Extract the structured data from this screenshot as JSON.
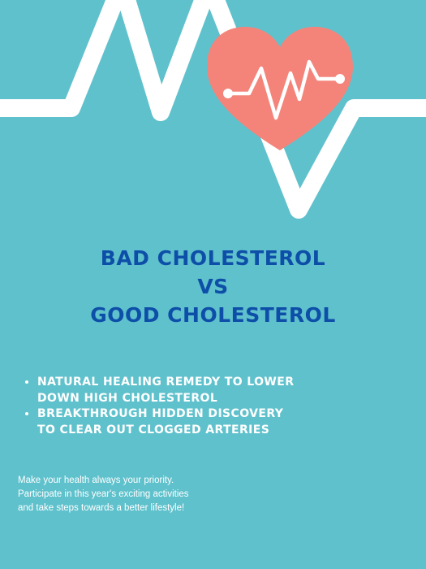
{
  "poster": {
    "title_lines": [
      "BAD CHOLESTEROL",
      "VS",
      "GOOD CHOLESTEROL"
    ],
    "bullets": [
      "NATURAL HEALING REMEDY TO LOWER DOWN HIGH CHOLESTEROL",
      "BREAKTHROUGH HIDDEN DISCOVERY TO CLEAR OUT CLOGGED ARTERIES"
    ],
    "tagline": "Make your health always your priority.\nParticipate in this year's exciting activities\nand take steps towards a better lifestyle!"
  },
  "colors": {
    "background": "#5fc1cc",
    "heart": "#f4847a",
    "title": "#0d4fa8",
    "text": "#ffffff"
  },
  "icons": [
    "heartbeat-line-icon",
    "heart-pulse-icon"
  ]
}
